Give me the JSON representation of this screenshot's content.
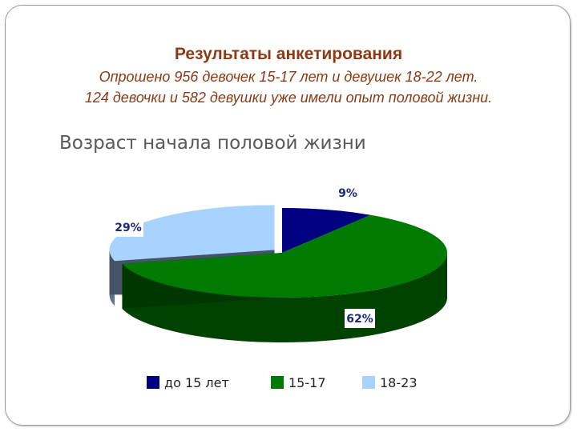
{
  "header": {
    "title": "Результаты анкетирования",
    "subtitle_line1": "Опрошено 956 девочек 15-17 лет и  девушек 18-22 лет.",
    "subtitle_line2": "124 девочки  и 582 девушки уже имели опыт половой жизни."
  },
  "chart_data": {
    "type": "pie",
    "style": "3d",
    "title": "Возраст начала половой жизни",
    "categories": [
      "до 15 лет",
      "15-17",
      "18-23"
    ],
    "values": [
      9,
      62,
      29
    ],
    "labels": [
      "9%",
      "62%",
      "29%"
    ],
    "colors": [
      "#000080",
      "#007a00",
      "#a9d3ff"
    ],
    "label_color": "#1a2a80",
    "legend": "bottom",
    "exploded": [
      "18-23"
    ]
  }
}
